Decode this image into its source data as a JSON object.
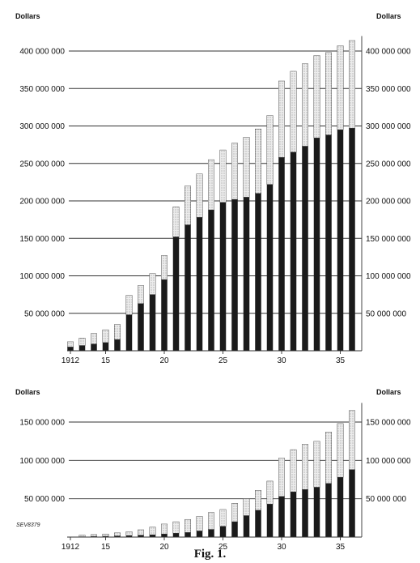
{
  "caption": "Fig. 1.",
  "colors": {
    "dark": "#1a1a1a",
    "light": "#e4e4e4",
    "grid": "#333333",
    "text": "#111111"
  },
  "chart_data": [
    {
      "type": "bar",
      "stacked": true,
      "title": "",
      "xlabel": "",
      "ylabel_left": "Dollars",
      "ylabel_right": "Dollars",
      "ylim": [
        0,
        420000000
      ],
      "yticks": [
        50000000,
        100000000,
        150000000,
        200000000,
        250000000,
        300000000,
        350000000,
        400000000
      ],
      "ytick_labels": [
        "50 000 000",
        "100 000 000",
        "150 000 000",
        "200 000 000",
        "250 000 000",
        "300 000 000",
        "350 000 000",
        "400 000 000"
      ],
      "x_tick_labels": [
        {
          "year": 1912,
          "label": "1912"
        },
        {
          "year": 1915,
          "label": "15"
        },
        {
          "year": 1920,
          "label": "20"
        },
        {
          "year": 1925,
          "label": "25"
        },
        {
          "year": 1930,
          "label": "30"
        },
        {
          "year": 1935,
          "label": "35"
        }
      ],
      "grid": "horizontal",
      "categories": [
        1912,
        1913,
        1914,
        1915,
        1916,
        1917,
        1918,
        1919,
        1920,
        1921,
        1922,
        1923,
        1924,
        1925,
        1926,
        1927,
        1928,
        1929,
        1930,
        1931,
        1932,
        1933,
        1934,
        1935,
        1936
      ],
      "series": [
        {
          "values": [
            5000000,
            7000000,
            9000000,
            11000000,
            15000000,
            48000000,
            63000000,
            75000000,
            95000000,
            152000000,
            168000000,
            178000000,
            188000000,
            198000000,
            202000000,
            205000000,
            210000000,
            222000000,
            258000000,
            265000000,
            273000000,
            284000000,
            288000000,
            295000000,
            297000000
          ]
        },
        {
          "values": [
            7000000,
            10000000,
            14000000,
            17000000,
            20000000,
            26000000,
            24000000,
            28000000,
            32000000,
            40000000,
            52000000,
            58000000,
            67000000,
            70000000,
            75000000,
            80000000,
            86000000,
            92000000,
            102000000,
            108000000,
            110000000,
            110000000,
            110000000,
            112000000,
            117000000
          ]
        }
      ]
    },
    {
      "type": "bar",
      "stacked": true,
      "title": "",
      "xlabel": "",
      "ylabel_left": "Dollars",
      "ylabel_right": "Dollars",
      "ylim": [
        0,
        175000000
      ],
      "yticks": [
        50000000,
        100000000,
        150000000
      ],
      "ytick_labels": [
        "50 000 000",
        "100 000 000",
        "150 000 000"
      ],
      "x_tick_labels": [
        {
          "year": 1912,
          "label": "1912"
        },
        {
          "year": 1915,
          "label": "15"
        },
        {
          "year": 1920,
          "label": "20"
        },
        {
          "year": 1925,
          "label": "25"
        },
        {
          "year": 1930,
          "label": "30"
        },
        {
          "year": 1935,
          "label": "35"
        }
      ],
      "grid": "horizontal",
      "annotation": "SEV8379",
      "categories": [
        1913,
        1914,
        1915,
        1916,
        1917,
        1918,
        1919,
        1920,
        1921,
        1922,
        1923,
        1924,
        1925,
        1926,
        1927,
        1928,
        1929,
        1930,
        1931,
        1932,
        1933,
        1934,
        1935,
        1936
      ],
      "series": [
        {
          "values": [
            500000,
            800000,
            1000000,
            1500000,
            2000000,
            2500000,
            3000000,
            4000000,
            5000000,
            6000000,
            8000000,
            10000000,
            14000000,
            20000000,
            28000000,
            35000000,
            43000000,
            53000000,
            59000000,
            62000000,
            65000000,
            70000000,
            78000000,
            88000000
          ]
        },
        {
          "values": [
            2000000,
            2500000,
            3000000,
            4000000,
            5000000,
            7000000,
            10000000,
            13000000,
            15000000,
            17000000,
            19000000,
            22000000,
            22000000,
            24000000,
            22000000,
            26000000,
            30000000,
            50000000,
            55000000,
            59000000,
            60000000,
            67000000,
            70000000,
            77000000
          ]
        }
      ]
    }
  ]
}
